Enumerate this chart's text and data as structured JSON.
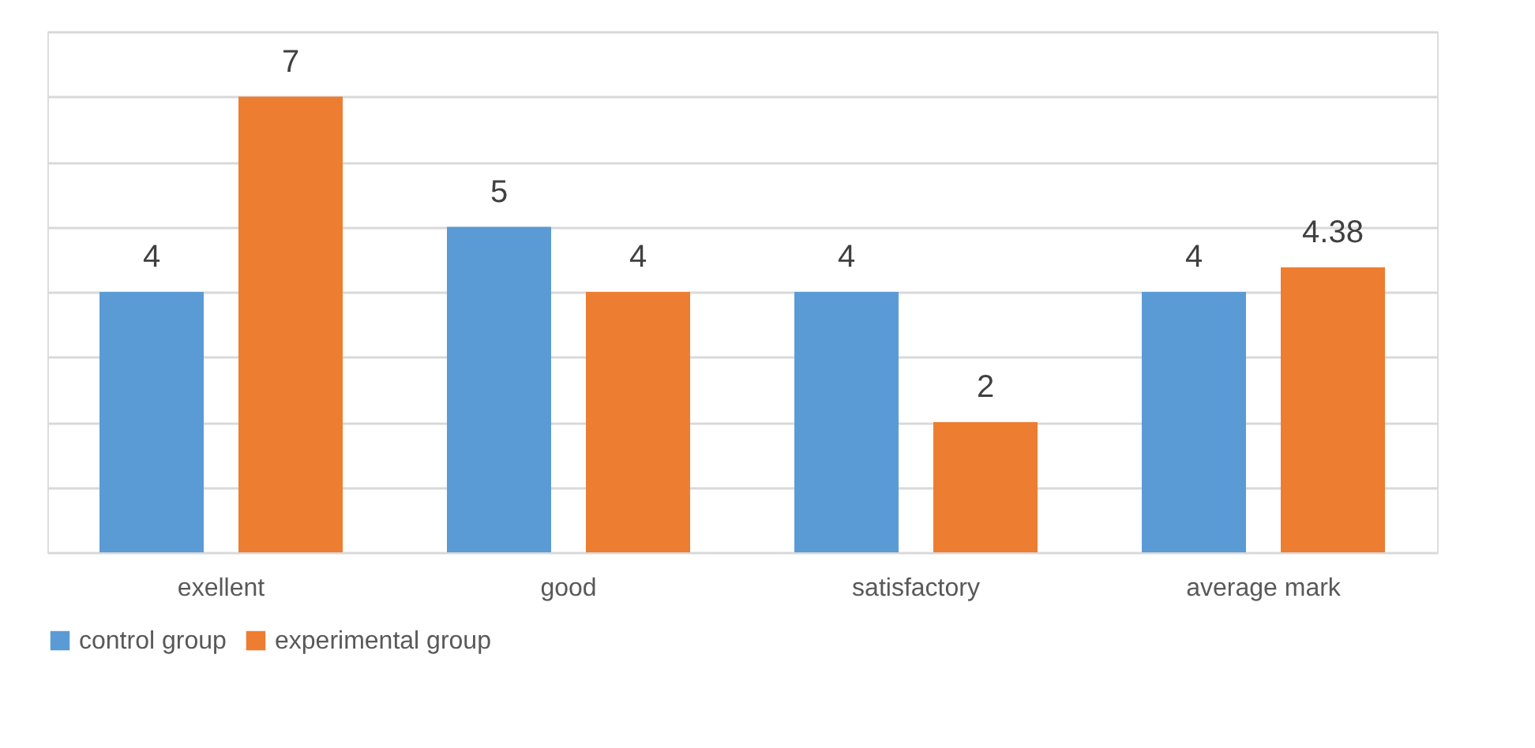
{
  "chart_data": {
    "type": "bar",
    "categories": [
      "exellent",
      "good",
      "satisfactory",
      "average mark"
    ],
    "series": [
      {
        "name": "control group",
        "color": "#5b9bd5",
        "values": [
          4,
          5,
          4,
          4
        ]
      },
      {
        "name": "experimental group",
        "color": "#ed7d31",
        "values": [
          7,
          4,
          2,
          4.38
        ]
      }
    ],
    "ylim": [
      0,
      8
    ],
    "yticks": [
      {
        "value": 0,
        "label": null
      },
      {
        "value": 1,
        "label": null
      },
      {
        "value": 2,
        "label": null
      },
      {
        "value": 3,
        "label": null
      },
      {
        "value": 4,
        "label": null
      },
      {
        "value": 5,
        "label": null
      },
      {
        "value": 6,
        "label": null
      },
      {
        "value": 7,
        "label": null
      },
      {
        "value": 8,
        "label": null
      }
    ],
    "tick_labels": "x",
    "grid": "y",
    "legend": "bottom",
    "data_labels": true
  }
}
